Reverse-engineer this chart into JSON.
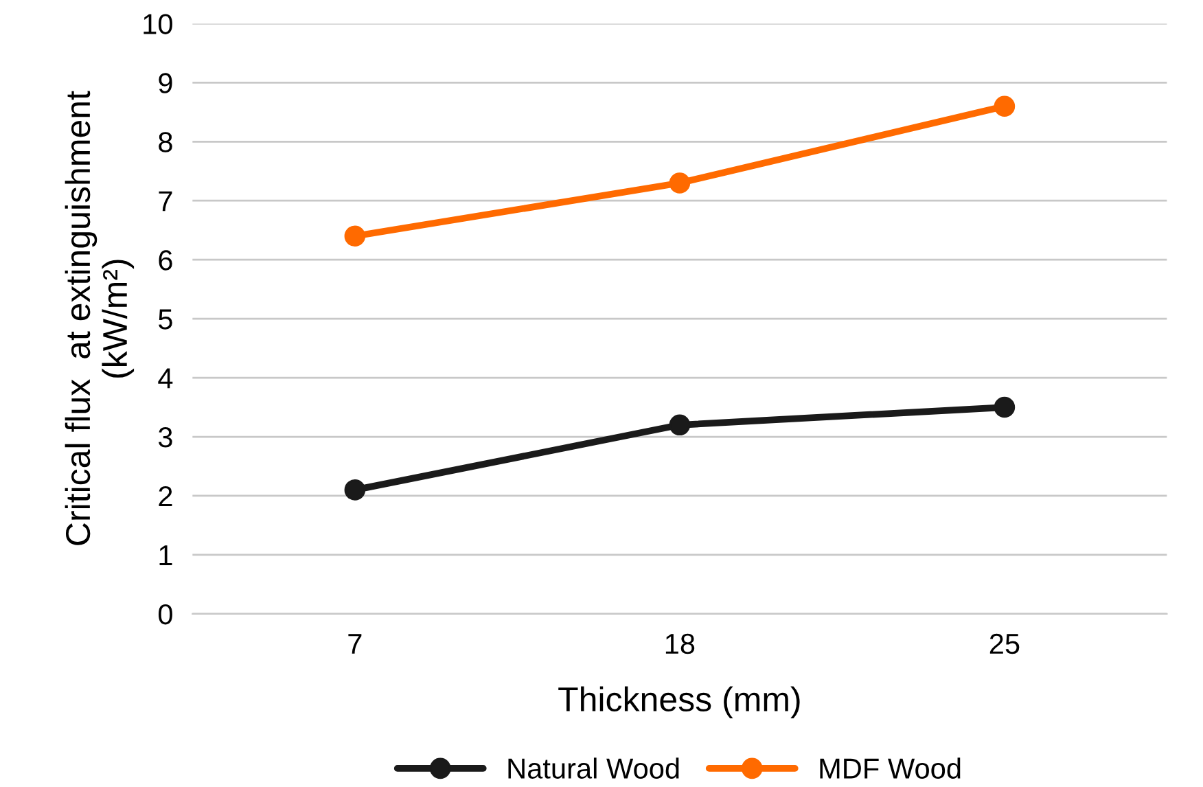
{
  "chart_data": {
    "type": "line",
    "xlabel": "Thickness (mm)",
    "ylabel": "Critical flux  at extinguishment\n(kW/m²)",
    "categories": [
      "7",
      "18",
      "25"
    ],
    "series": [
      {
        "name": "Natural Wood",
        "color": "#1a1a1a",
        "values": [
          2.1,
          3.2,
          3.5
        ]
      },
      {
        "name": "MDF Wood",
        "color": "#ff6a00",
        "values": [
          6.4,
          7.3,
          8.6
        ]
      }
    ],
    "ylim": [
      0,
      10
    ],
    "yticks": [
      0,
      1,
      2,
      3,
      4,
      5,
      6,
      7,
      8,
      9,
      10
    ],
    "grid": "y",
    "legend": "bottom",
    "marker": "circle",
    "line_style": "solid"
  }
}
